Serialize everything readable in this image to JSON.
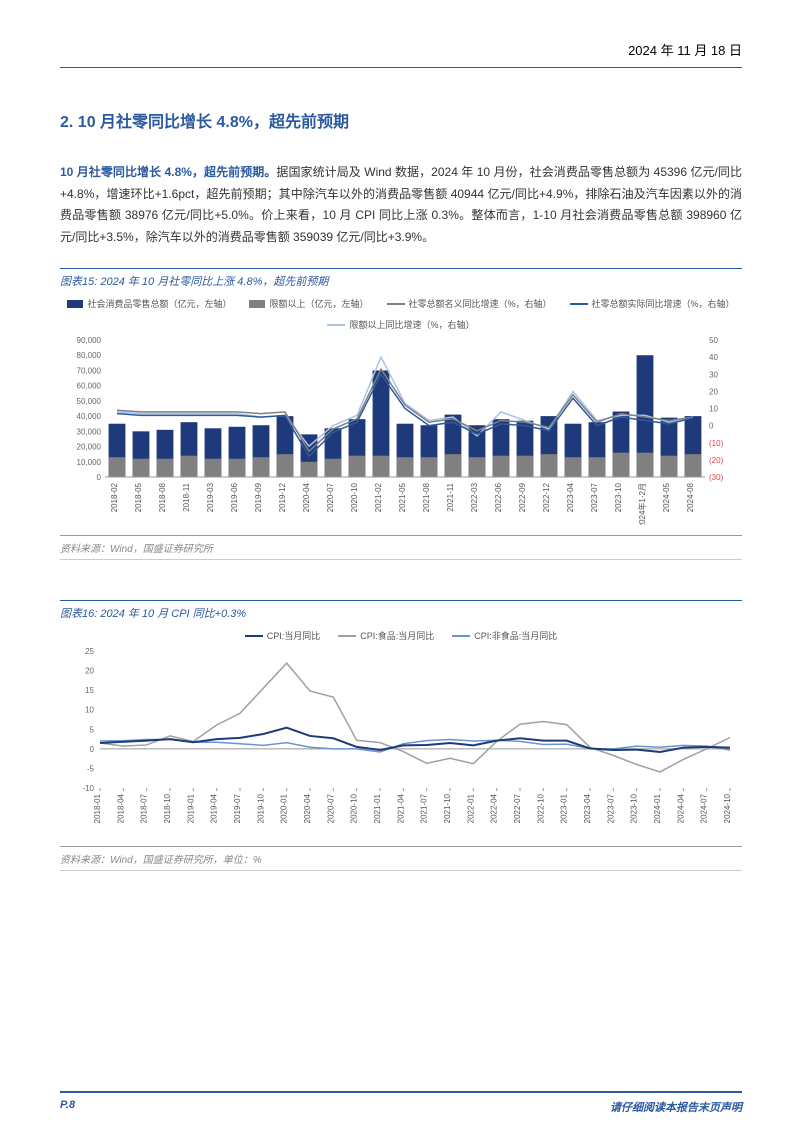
{
  "header": {
    "date": "2024 年 11 月 18 日"
  },
  "section": {
    "title": "2. 10 月社零同比增长 4.8%，超先前预期"
  },
  "paragraph": {
    "lead": "10 月社零同比增长 4.8%，超先前预期。",
    "body": "据国家统计局及 Wind 数据，2024 年 10 月份，社会消费品零售总额为 45396 亿元/同比+4.8%，增速环比+1.6pct，超先前预期；其中除汽车以外的消费品零售额 40944 亿元/同比+4.9%，排除石油及汽车因素以外的消费品零售额 38976 亿元/同比+5.0%。价上来看，10 月 CPI 同比上涨 0.3%。整体而言，1-10 月社会消费品零售总额 398960 亿元/同比+3.5%，除汽车以外的消费品零售额 359039 亿元/同比+3.9%。"
  },
  "chart15": {
    "title": "图表15:  2024 年 10 月社零同比上涨 4.8%，超先前预期",
    "type": "bar_line_combo",
    "legend": [
      {
        "label": "社会消费品零售总额（亿元，左轴）",
        "type": "bar",
        "color": "#1f3a7a"
      },
      {
        "label": "限额以上（亿元，左轴）",
        "type": "bar",
        "color": "#808080"
      },
      {
        "label": "社零总额名义同比增速（%，右轴）",
        "type": "line",
        "color": "#808080"
      },
      {
        "label": "社零总额实际同比增速（%，右轴）",
        "type": "line",
        "color": "#2c5aa0"
      },
      {
        "label": "限额以上同比增速（%，右轴）",
        "type": "line",
        "color": "#a8c4e8"
      }
    ],
    "xlabels": [
      "2018-02",
      "2018-05",
      "2018-08",
      "2018-11",
      "2019-03",
      "2019-06",
      "2019-09",
      "2019-12",
      "2020-04",
      "2020-07",
      "2020-10",
      "2021-02",
      "2021-05",
      "2021-08",
      "2021-11",
      "2022-03",
      "2022-06",
      "2022-09",
      "2022-12",
      "2023-04",
      "2023-07",
      "2023-10",
      "2024年1-2月",
      "2024-05",
      "2024-08"
    ],
    "y_left": {
      "min": 0,
      "max": 90000,
      "step": 10000,
      "label_fontsize": 8
    },
    "y_right": {
      "min": -30,
      "max": 50,
      "step": 10,
      "label_fontsize": 8,
      "neg_color": "#d94545"
    },
    "bars_total": [
      35000,
      30000,
      31000,
      36000,
      32000,
      33000,
      34000,
      40000,
      28000,
      32000,
      38000,
      70000,
      35000,
      34000,
      41000,
      34000,
      38000,
      37000,
      40000,
      35000,
      36000,
      43000,
      80000,
      39000,
      40000
    ],
    "bars_limit": [
      13000,
      12000,
      12000,
      14000,
      12000,
      12000,
      13000,
      15000,
      10000,
      12000,
      14000,
      14000,
      13000,
      13000,
      15000,
      13000,
      14000,
      14000,
      15000,
      13000,
      13000,
      16000,
      16000,
      14000,
      15000
    ],
    "line_nominal": [
      9,
      8,
      8,
      8,
      8,
      8,
      7,
      8,
      -15,
      -2,
      4,
      33,
      12,
      2,
      4,
      -3,
      3,
      2,
      -1,
      18,
      2,
      7,
      5,
      3,
      4.8
    ],
    "line_real": [
      7,
      6,
      6,
      6,
      6,
      6,
      5,
      6,
      -18,
      -4,
      2,
      30,
      10,
      0,
      2,
      -5,
      1,
      0,
      -3,
      16,
      0,
      5,
      3,
      1,
      4.5
    ],
    "line_limit_growth": [
      8,
      7,
      7,
      7,
      7,
      7,
      5,
      6,
      -12,
      0,
      6,
      40,
      13,
      3,
      5,
      -6,
      8,
      3,
      -2,
      20,
      3,
      6,
      6,
      2,
      5
    ],
    "colors": {
      "bar_total": "#1f3a7a",
      "bar_limit": "#808080",
      "line_nominal": "#808080",
      "line_real": "#2c5aa0",
      "line_limit": "#a8c4e8",
      "grid": "#e0e0e0",
      "axis": "#999999",
      "bg": "#ffffff"
    },
    "source": "资料来源：Wind，国盛证券研究所"
  },
  "chart16": {
    "title": "图表16:  2024 年 10 月 CPI 同比+0.3%",
    "type": "line",
    "legend": [
      {
        "label": "CPI:当月同比",
        "type": "line",
        "color": "#1f3a7a"
      },
      {
        "label": "CPI:食品:当月同比",
        "type": "line",
        "color": "#a0a0a0"
      },
      {
        "label": "CPI:非食品:当月同比",
        "type": "line",
        "color": "#6994d4"
      }
    ],
    "xlabels": [
      "2018-01",
      "2018-04",
      "2018-07",
      "2018-10",
      "2019-01",
      "2019-04",
      "2019-07",
      "2019-10",
      "2020-01",
      "2020-04",
      "2020-07",
      "2020-10",
      "2021-01",
      "2021-04",
      "2021-07",
      "2021-10",
      "2022-01",
      "2022-04",
      "2022-07",
      "2022-10",
      "2023-01",
      "2023-04",
      "2023-07",
      "2023-10",
      "2024-01",
      "2024-04",
      "2024-07",
      "2024-10"
    ],
    "y": {
      "min": -10,
      "max": 25,
      "step": 5,
      "label_fontsize": 8
    },
    "line_cpi": [
      1.5,
      1.8,
      2.1,
      2.5,
      1.7,
      2.5,
      2.8,
      3.8,
      5.4,
      3.3,
      2.7,
      0.5,
      -0.3,
      0.9,
      1.0,
      1.5,
      0.9,
      2.1,
      2.7,
      2.1,
      2.1,
      0.1,
      -0.3,
      -0.2,
      -0.8,
      0.3,
      0.5,
      0.3
    ],
    "line_food": [
      1.5,
      0.7,
      1.0,
      3.3,
      1.9,
      6.1,
      9.1,
      15.5,
      21.9,
      14.8,
      13.2,
      2.2,
      1.6,
      -0.7,
      -3.7,
      -2.4,
      -3.8,
      1.9,
      6.3,
      7.0,
      6.2,
      0.4,
      -1.7,
      -4.0,
      -5.9,
      -2.7,
      0.0,
      2.9
    ],
    "line_nonfood": [
      2.0,
      2.1,
      2.4,
      2.4,
      1.7,
      1.7,
      1.3,
      0.9,
      1.6,
      0.4,
      0.0,
      0.0,
      -0.8,
      1.3,
      2.1,
      2.4,
      2.0,
      2.2,
      1.9,
      1.1,
      1.2,
      0.1,
      0.0,
      0.7,
      0.4,
      0.9,
      0.7,
      -0.3
    ],
    "colors": {
      "line_cpi": "#1f3a7a",
      "line_food": "#a0a0a0",
      "line_nonfood": "#6994d4",
      "grid": "#e0e0e0",
      "axis": "#999999",
      "bg": "#ffffff"
    },
    "source": "资料来源：Wind，国盛证券研究所，单位：%"
  },
  "footer": {
    "page": "P.8",
    "disclaimer": "请仔细阅读本报告末页声明"
  }
}
